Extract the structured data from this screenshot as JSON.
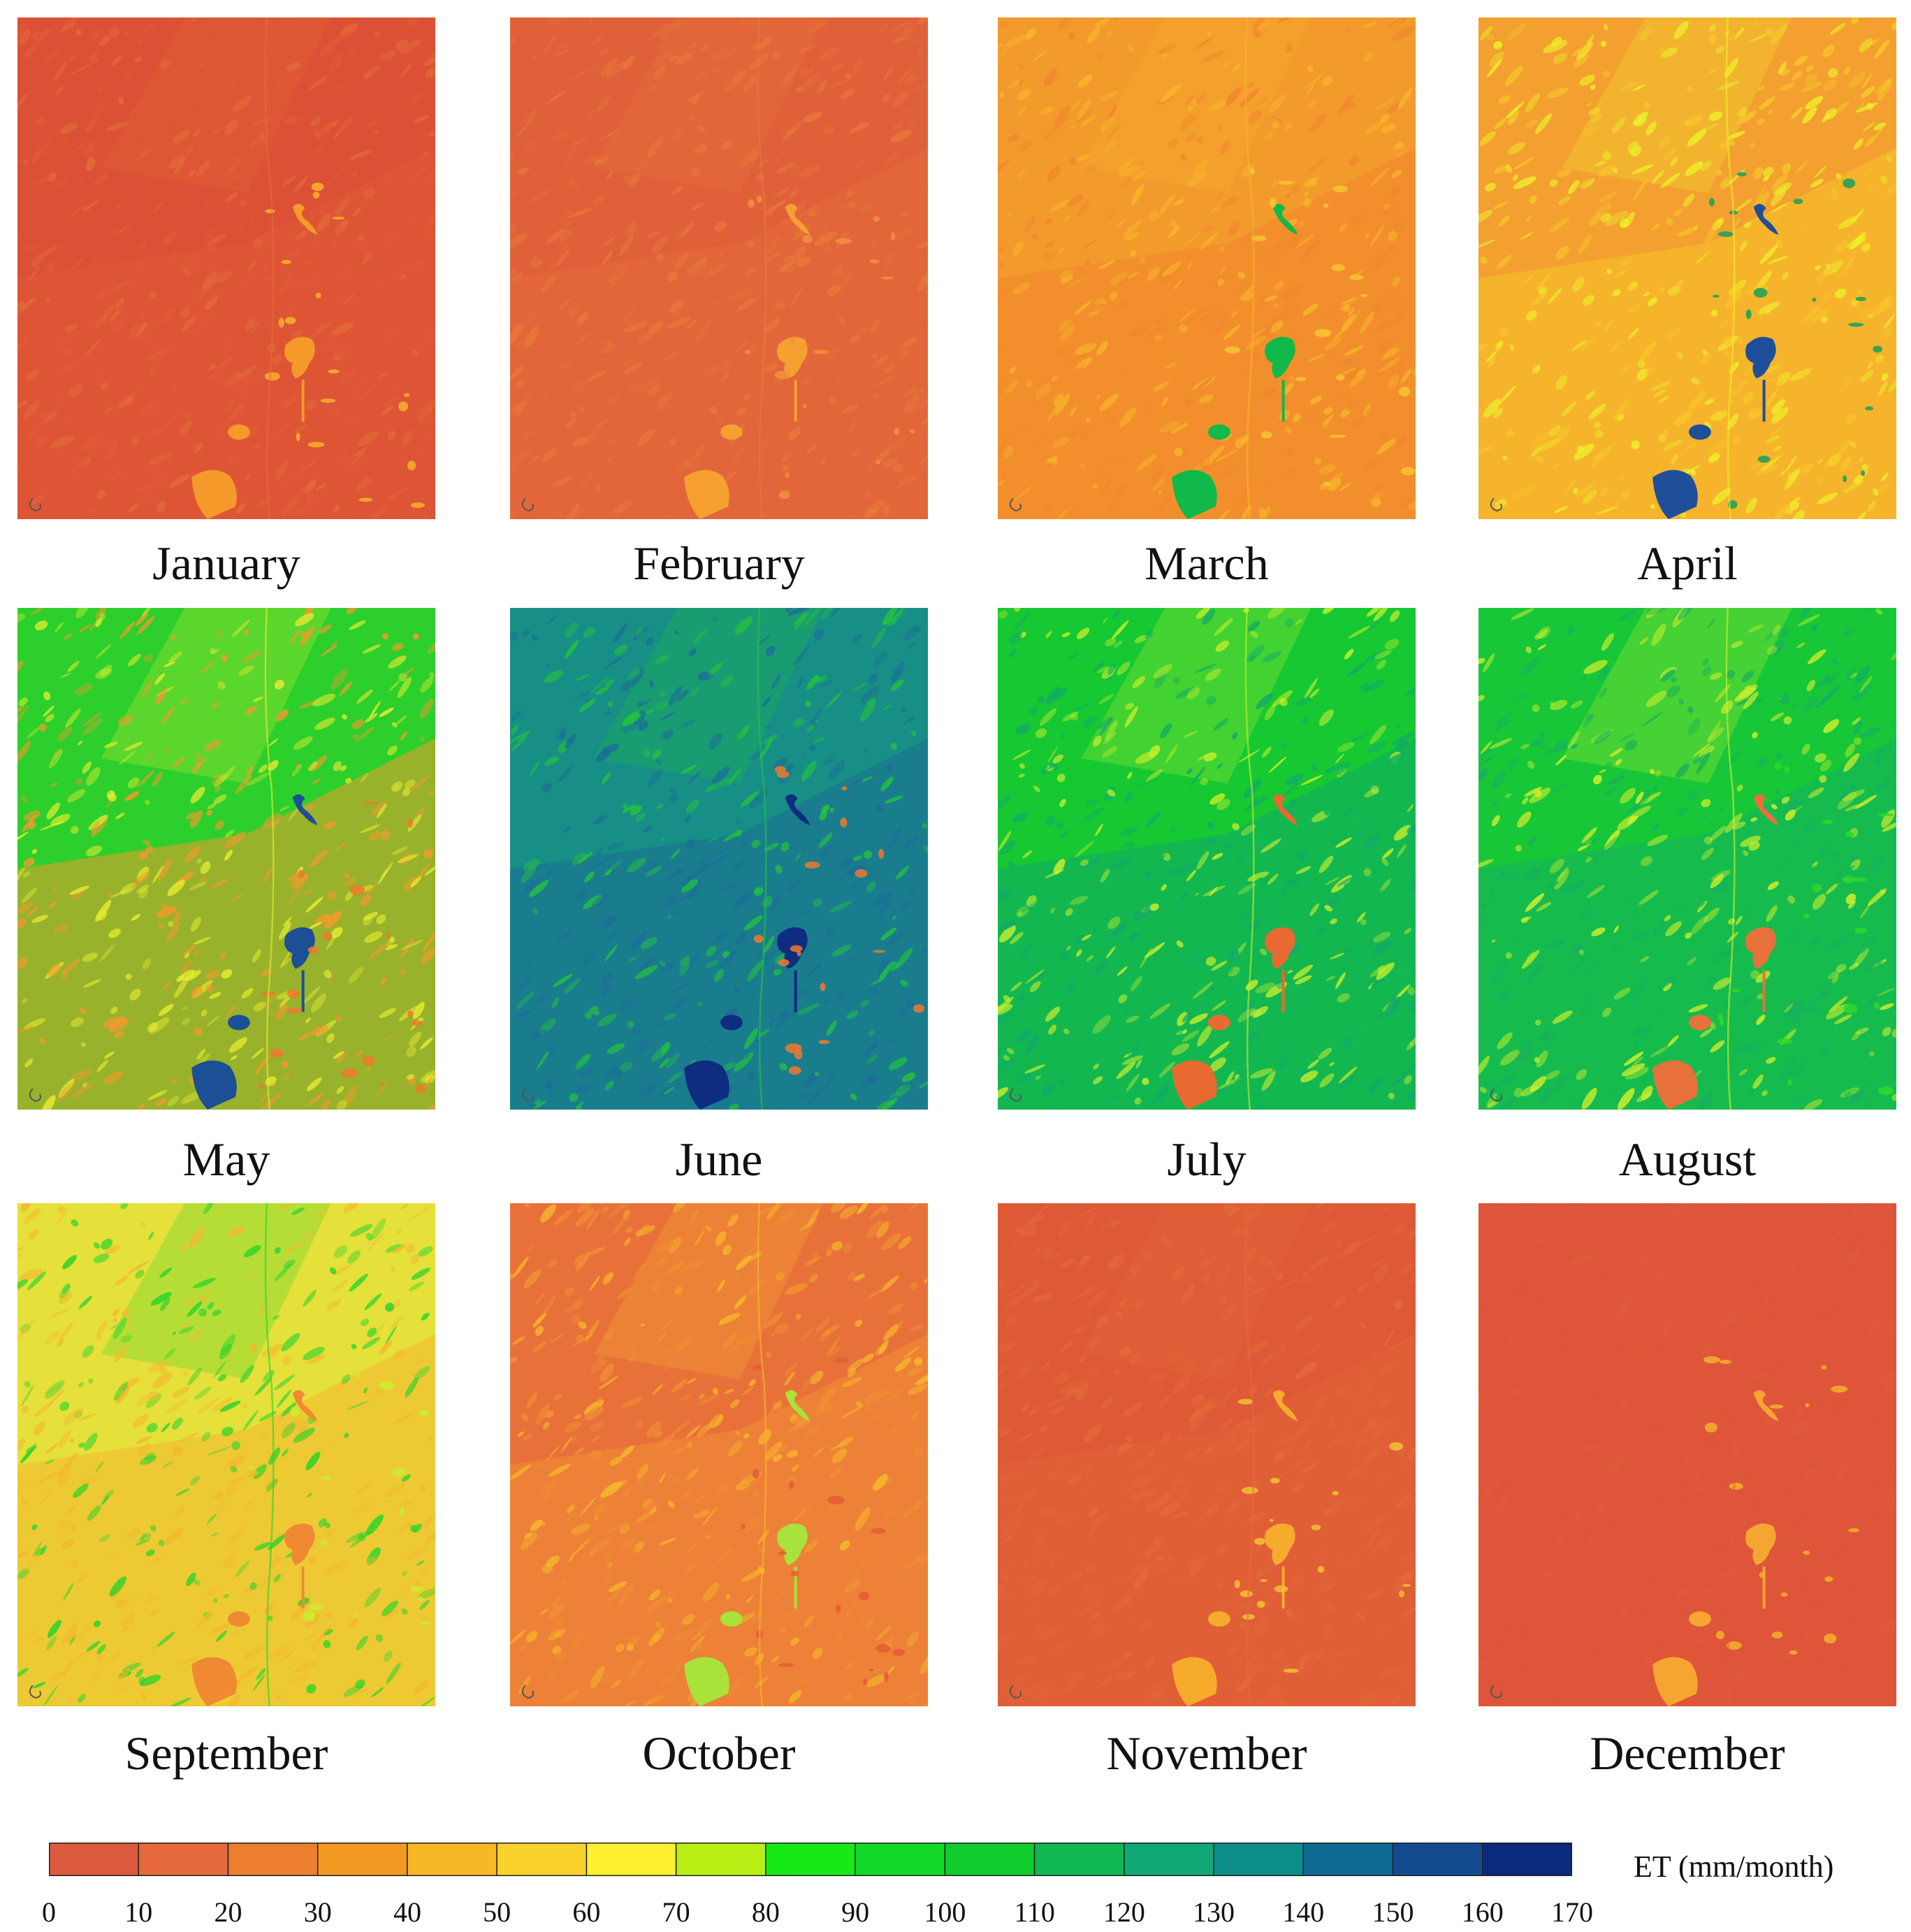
{
  "figure": {
    "panels": [
      {
        "month": "January",
        "base": "#dc5035",
        "mid": "#e05a36",
        "light": "#e26a38",
        "accents": [
          "#f59a2a",
          "#f7b12a"
        ]
      },
      {
        "month": "February",
        "base": "#e0603a",
        "mid": "#e36c3a",
        "light": "#e8783a",
        "accents": [
          "#f5a030",
          "#f29040"
        ]
      },
      {
        "month": "March",
        "base": "#f39a2c",
        "mid": "#f0872e",
        "light": "#f7b52a",
        "accents": [
          "#11b84a",
          "#f7c534"
        ]
      },
      {
        "month": "April",
        "base": "#f3a030",
        "mid": "#f7c52a",
        "light": "#eef02a",
        "accents": [
          "#1f4f9a",
          "#18a05c"
        ]
      },
      {
        "month": "May",
        "base": "#2ccf2c",
        "mid": "#f39a2c",
        "light": "#e6ec30",
        "accents": [
          "#1c4f96",
          "#f0782e"
        ]
      },
      {
        "month": "June",
        "base": "#178f86",
        "mid": "#1b6f96",
        "light": "#25c43c",
        "accents": [
          "#0e2c80",
          "#f0782e"
        ]
      },
      {
        "month": "July",
        "base": "#16c832",
        "mid": "#12a96a",
        "light": "#c6ee2e",
        "accents": [
          "#e86a30",
          "#0fbb50"
        ]
      },
      {
        "month": "August",
        "base": "#17c738",
        "mid": "#16b05e",
        "light": "#d2ef2c",
        "accents": [
          "#e8703a",
          "#2fd82c"
        ]
      },
      {
        "month": "September",
        "base": "#e6e03a",
        "mid": "#f3b830",
        "light": "#28d42a",
        "accents": [
          "#f08a32",
          "#c9ef2e"
        ]
      },
      {
        "month": "October",
        "base": "#e8713a",
        "mid": "#f08e34",
        "light": "#f7b92c",
        "accents": [
          "#a8e23a",
          "#e45c36"
        ]
      },
      {
        "month": "November",
        "base": "#de5a36",
        "mid": "#e16538",
        "light": "#e46a3a",
        "accents": [
          "#f6ab2c",
          "#f1c232"
        ]
      },
      {
        "month": "December",
        "base": "#df553a",
        "mid": "#df553a",
        "light": "#df5a3c",
        "accents": [
          "#f5a530",
          "#f2b22c"
        ]
      }
    ],
    "legend": {
      "title": "ET (mm/month)",
      "ticks": [
        "0",
        "10",
        "20",
        "30",
        "40",
        "50",
        "60",
        "70",
        "80",
        "90",
        "100",
        "110",
        "120",
        "130",
        "140",
        "150",
        "160",
        "170"
      ],
      "colors": [
        "#de5a3e",
        "#e5693c",
        "#ed7f2f",
        "#f39a23",
        "#f7b826",
        "#fad22c",
        "#fdf02e",
        "#b9ef15",
        "#17e917",
        "#12d927",
        "#10cc2d",
        "#0fb850",
        "#10a874",
        "#0c8e8a",
        "#0f6a93",
        "#134b8e",
        "#0a2a7e"
      ]
    }
  }
}
